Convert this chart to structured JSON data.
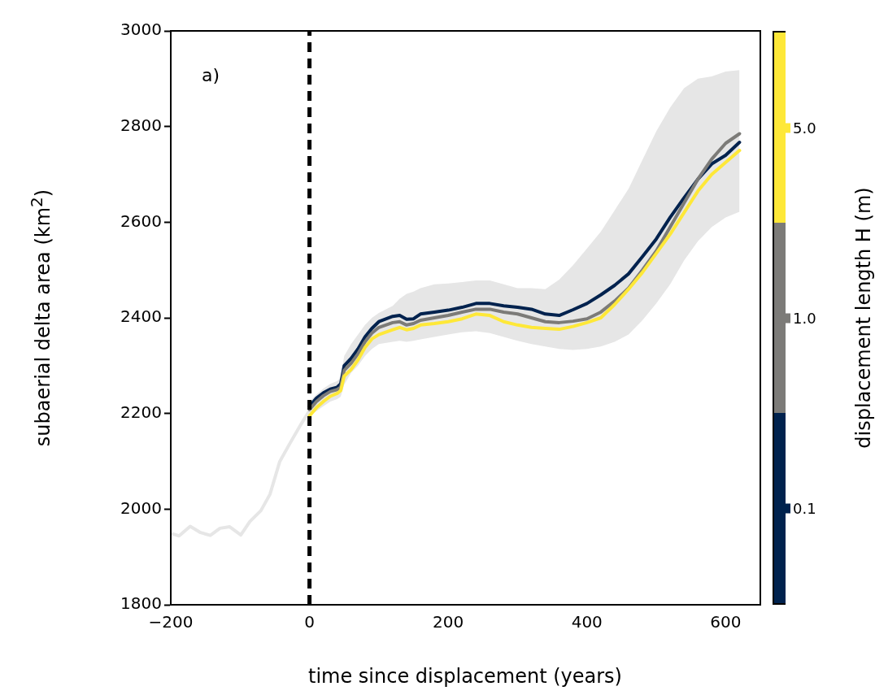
{
  "chart_data": {
    "type": "line",
    "xlabel": "time since displacement (years)",
    "ylabel": "subaerial delta area (km$^{2}$)",
    "legend_title": "displacement length H (m)",
    "legend": "right",
    "grid": false,
    "line_style": "solid",
    "marker": "none",
    "xlim": [
      -200,
      650
    ],
    "xticks": [
      {
        "value": -200,
        "label": "−200"
      },
      0,
      200,
      400,
      600
    ],
    "ylim": [
      1800,
      3000
    ],
    "yticks": [
      1800,
      2000,
      2200,
      2400,
      2600,
      2800,
      3000
    ],
    "annotations": [
      "a)"
    ],
    "ref_lines": [
      {
        "axis": "x",
        "value": 0,
        "color": "#000000",
        "line_style": "dashed"
      }
    ],
    "series": [
      {
        "color": "#e6e6e6",
        "x": [
          -197,
          -188,
          -172,
          -157,
          -143,
          -129,
          -115,
          -99,
          -86,
          -70,
          -57,
          -43,
          -28,
          -12,
          0
        ],
        "values": [
          1948,
          1944,
          1964,
          1951,
          1945,
          1960,
          1963,
          1946,
          1974,
          1997,
          2031,
          2099,
          2138,
          2178,
          2206
        ]
      },
      {
        "name": "0.1",
        "color": "#00224e",
        "x": [
          0,
          10,
          20,
          30,
          40,
          45,
          50,
          60,
          70,
          80,
          90,
          100,
          120,
          130,
          140,
          150,
          160,
          180,
          200,
          220,
          240,
          260,
          280,
          300,
          320,
          340,
          360,
          380,
          400,
          420,
          440,
          460,
          480,
          500,
          520,
          540,
          560,
          580,
          600,
          620
        ],
        "values": [
          2215,
          2232,
          2243,
          2251,
          2255,
          2262,
          2300,
          2315,
          2335,
          2360,
          2378,
          2392,
          2403,
          2405,
          2397,
          2398,
          2408,
          2412,
          2416,
          2422,
          2430,
          2430,
          2425,
          2422,
          2418,
          2408,
          2405,
          2417,
          2430,
          2448,
          2468,
          2492,
          2528,
          2565,
          2610,
          2651,
          2690,
          2722,
          2740,
          2767
        ]
      },
      {
        "name": "1.0",
        "color": "#7c7b78",
        "x": [
          0,
          10,
          20,
          30,
          40,
          45,
          50,
          60,
          70,
          80,
          90,
          100,
          120,
          130,
          140,
          150,
          160,
          180,
          200,
          220,
          240,
          260,
          280,
          300,
          320,
          340,
          360,
          380,
          400,
          420,
          440,
          460,
          480,
          500,
          520,
          540,
          560,
          580,
          600,
          620
        ],
        "values": [
          2208,
          2225,
          2237,
          2246,
          2250,
          2255,
          2290,
          2305,
          2325,
          2350,
          2368,
          2380,
          2390,
          2392,
          2385,
          2388,
          2395,
          2400,
          2405,
          2412,
          2418,
          2418,
          2412,
          2408,
          2400,
          2392,
          2390,
          2393,
          2398,
          2412,
          2435,
          2462,
          2500,
          2540,
          2590,
          2640,
          2690,
          2732,
          2765,
          2785
        ],
        "lower": [
          2195,
          2205,
          2215,
          2225,
          2230,
          2235,
          2260,
          2285,
          2300,
          2320,
          2335,
          2345,
          2350,
          2352,
          2350,
          2352,
          2355,
          2360,
          2365,
          2370,
          2372,
          2368,
          2360,
          2352,
          2345,
          2340,
          2335,
          2333,
          2335,
          2340,
          2350,
          2365,
          2395,
          2430,
          2470,
          2520,
          2560,
          2590,
          2610,
          2622
        ],
        "upper": [
          2225,
          2240,
          2252,
          2262,
          2268,
          2275,
          2320,
          2345,
          2365,
          2385,
          2400,
          2410,
          2425,
          2440,
          2450,
          2455,
          2462,
          2470,
          2472,
          2475,
          2478,
          2478,
          2470,
          2462,
          2462,
          2460,
          2480,
          2510,
          2545,
          2580,
          2625,
          2670,
          2730,
          2790,
          2840,
          2880,
          2900,
          2905,
          2915,
          2918
        ]
      },
      {
        "name": "5.0",
        "color": "#fee838",
        "x": [
          0,
          10,
          20,
          30,
          40,
          45,
          50,
          60,
          70,
          80,
          90,
          100,
          120,
          130,
          140,
          150,
          160,
          180,
          200,
          220,
          240,
          260,
          280,
          300,
          320,
          340,
          360,
          380,
          400,
          420,
          440,
          460,
          480,
          500,
          520,
          540,
          560,
          580,
          600,
          620
        ],
        "values": [
          2195,
          2212,
          2225,
          2236,
          2242,
          2248,
          2278,
          2292,
          2312,
          2338,
          2356,
          2365,
          2375,
          2380,
          2375,
          2378,
          2385,
          2388,
          2392,
          2398,
          2408,
          2405,
          2392,
          2385,
          2380,
          2378,
          2376,
          2382,
          2390,
          2400,
          2428,
          2460,
          2495,
          2535,
          2575,
          2620,
          2665,
          2700,
          2725,
          2750
        ]
      }
    ]
  }
}
